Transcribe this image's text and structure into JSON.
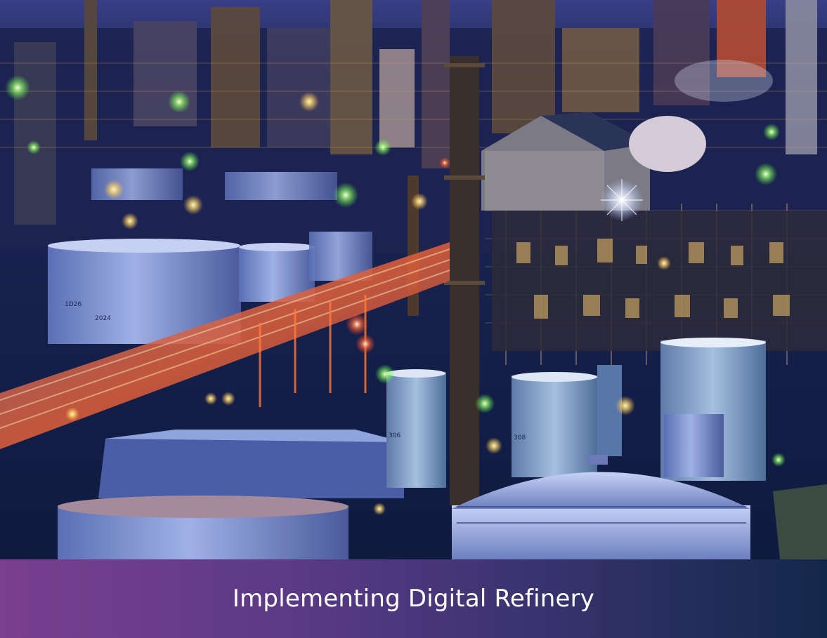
{
  "caption": {
    "title": "Implementing Digital Refinery"
  },
  "photo": {
    "subject": "refinery-night-photo",
    "tank_labels": [
      "1D26",
      "2024",
      "306",
      "308"
    ]
  },
  "colors": {
    "caption_gradient_start": "#7a3f8f",
    "caption_gradient_end": "#12284a",
    "caption_text": "#ffffff"
  }
}
